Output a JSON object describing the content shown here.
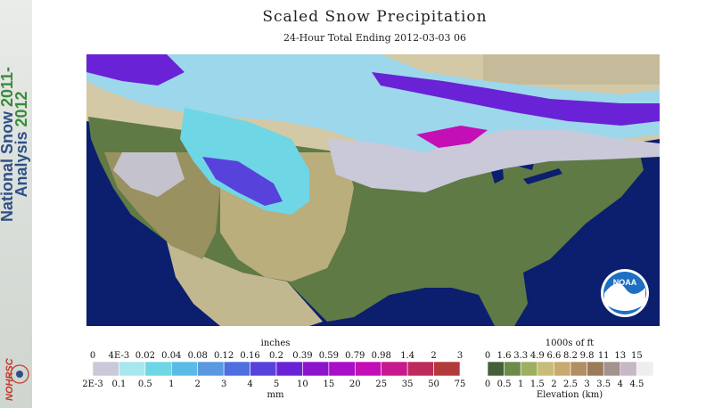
{
  "sidebar": {
    "title_line1": "National Snow ",
    "title_line1_year": "2011-",
    "title_line2": "Analysis ",
    "title_line2_year": "2012",
    "logo_text": "NOHRSC"
  },
  "header": {
    "title": "Scaled Snow Precipitation",
    "subtitle": "24-Hour Total Ending 2012-03-03 06"
  },
  "map": {
    "logo_text": "NOAA"
  },
  "precip_legend": {
    "top_unit": "inches",
    "bottom_unit": "mm",
    "inches": [
      "0",
      "4E-3",
      "0.02",
      "0.04",
      "0.08",
      "0.12",
      "0.16",
      "0.2",
      "0.39",
      "0.59",
      "0.79",
      "0.98",
      "1.4",
      "2",
      "3"
    ],
    "mm": [
      "2E-3",
      "0.1",
      "0.5",
      "1",
      "2",
      "3",
      "4",
      "5",
      "10",
      "15",
      "20",
      "25",
      "35",
      "50",
      "75"
    ],
    "colors": [
      "#c9c9d9",
      "#a7e7ee",
      "#6fd6e6",
      "#5bbbe6",
      "#5a98e0",
      "#4e6fe0",
      "#5742dc",
      "#6a22d6",
      "#8c14cc",
      "#a80fc8",
      "#c40fb6",
      "#c81a8f",
      "#bd2a5e",
      "#b23a3a"
    ]
  },
  "elev_legend": {
    "top_unit": "1000s of ft",
    "bottom_unit": "Elevation (km)",
    "feet": [
      "0",
      "1.6",
      "3.3",
      "4.9",
      "6.6",
      "8.2",
      "9.8",
      "11",
      "13",
      "15"
    ],
    "km": [
      "0",
      "0.5",
      "1",
      "1.5",
      "2",
      "2.5",
      "3",
      "3.5",
      "4",
      "4.5"
    ],
    "colors": [
      "#43603a",
      "#6c8a4a",
      "#9eae62",
      "#c7bd79",
      "#c8a96e",
      "#b18f62",
      "#9a7b5a",
      "#a3928d",
      "#c7b8c8",
      "#eeeeee"
    ]
  }
}
